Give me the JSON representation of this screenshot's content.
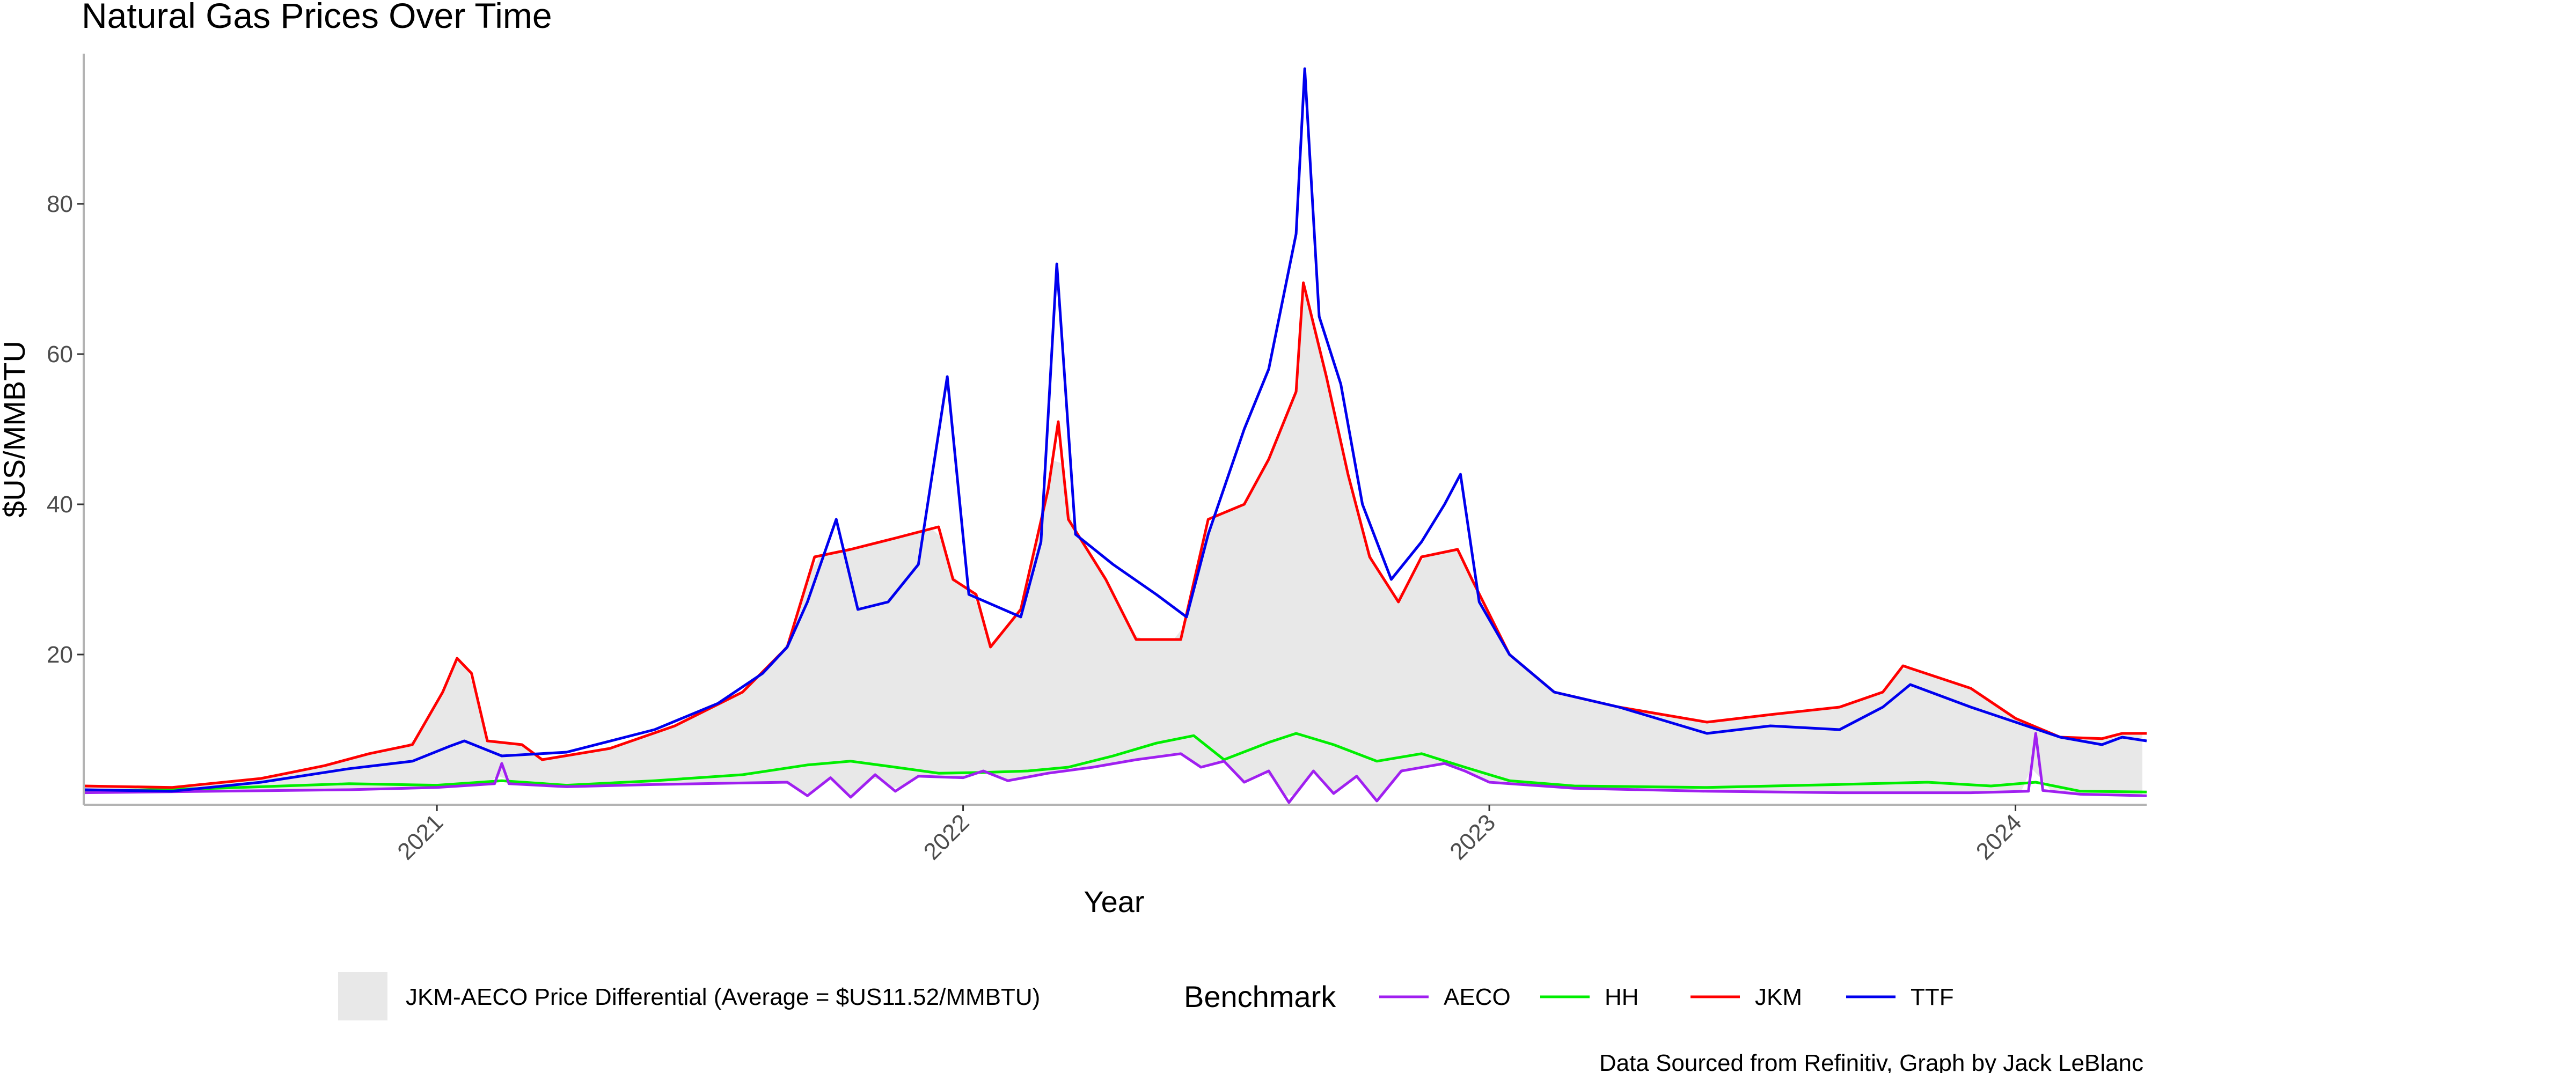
{
  "chart_data": {
    "type": "line",
    "title": "Natural Gas Prices Over Time",
    "xlabel": "Year",
    "ylabel": "$US/MMBTU",
    "caption": "Data Sourced from Refinitiv, Graph by Jack LeBlanc",
    "x_ticks": [
      "2021",
      "2022",
      "2023",
      "2024"
    ],
    "y_ticks": [
      "20",
      "40",
      "60",
      "80"
    ],
    "xlim": [
      "2020-05-01",
      "2024-04-01"
    ],
    "ylim": [
      0,
      100
    ],
    "grid": false,
    "legend_position": "bottom",
    "legend_title": "Benchmark",
    "ribbon": {
      "label": "JKM-AECO Price Differential (Average = $US11.52/MMBTU)",
      "lower": "AECO",
      "upper": "JKM",
      "color": "#e8e8e8"
    },
    "series": [
      {
        "name": "AECO",
        "color": "#a020f0",
        "points": [
          [
            "2020-05-01",
            1.6
          ],
          [
            "2020-08-01",
            1.8
          ],
          [
            "2020-11-01",
            2.0
          ],
          [
            "2021-01-01",
            2.3
          ],
          [
            "2021-02-10",
            2.8
          ],
          [
            "2021-02-15",
            5.5
          ],
          [
            "2021-02-20",
            2.8
          ],
          [
            "2021-04-01",
            2.4
          ],
          [
            "2021-06-01",
            2.7
          ],
          [
            "2021-08-01",
            2.9
          ],
          [
            "2021-09-01",
            3.0
          ],
          [
            "2021-09-15",
            1.2
          ],
          [
            "2021-10-01",
            3.6
          ],
          [
            "2021-10-15",
            1.0
          ],
          [
            "2021-11-01",
            4.0
          ],
          [
            "2021-11-15",
            1.8
          ],
          [
            "2021-12-01",
            3.8
          ],
          [
            "2022-01-01",
            3.6
          ],
          [
            "2022-01-15",
            4.5
          ],
          [
            "2022-02-01",
            3.2
          ],
          [
            "2022-03-01",
            4.2
          ],
          [
            "2022-04-01",
            5.0
          ],
          [
            "2022-05-01",
            6.0
          ],
          [
            "2022-06-01",
            6.8
          ],
          [
            "2022-06-15",
            5.0
          ],
          [
            "2022-07-01",
            5.8
          ],
          [
            "2022-07-15",
            3.0
          ],
          [
            "2022-08-01",
            4.5
          ],
          [
            "2022-08-15",
            0.3
          ],
          [
            "2022-09-01",
            4.5
          ],
          [
            "2022-09-15",
            1.5
          ],
          [
            "2022-10-01",
            3.8
          ],
          [
            "2022-10-15",
            0.5
          ],
          [
            "2022-11-01",
            4.5
          ],
          [
            "2022-12-01",
            5.5
          ],
          [
            "2022-12-15",
            4.5
          ],
          [
            "2023-01-01",
            3.0
          ],
          [
            "2023-03-01",
            2.2
          ],
          [
            "2023-06-01",
            1.8
          ],
          [
            "2023-09-01",
            1.6
          ],
          [
            "2023-12-01",
            1.6
          ],
          [
            "2024-01-10",
            1.8
          ],
          [
            "2024-01-15",
            9.5
          ],
          [
            "2024-01-20",
            1.9
          ],
          [
            "2024-02-15",
            1.4
          ],
          [
            "2024-04-01",
            1.2
          ]
        ]
      },
      {
        "name": "HH",
        "color": "#00ee00",
        "points": [
          [
            "2020-05-01",
            1.8
          ],
          [
            "2020-08-01",
            2.2
          ],
          [
            "2020-11-01",
            2.8
          ],
          [
            "2021-01-01",
            2.6
          ],
          [
            "2021-02-15",
            3.2
          ],
          [
            "2021-04-01",
            2.6
          ],
          [
            "2021-06-01",
            3.2
          ],
          [
            "2021-08-01",
            4.0
          ],
          [
            "2021-09-15",
            5.3
          ],
          [
            "2021-10-15",
            5.8
          ],
          [
            "2021-11-15",
            5.0
          ],
          [
            "2021-12-15",
            4.2
          ],
          [
            "2022-01-15",
            4.3
          ],
          [
            "2022-02-15",
            4.5
          ],
          [
            "2022-03-15",
            5.0
          ],
          [
            "2022-04-15",
            6.5
          ],
          [
            "2022-05-15",
            8.2
          ],
          [
            "2022-06-10",
            9.2
          ],
          [
            "2022-07-01",
            6.0
          ],
          [
            "2022-08-01",
            8.3
          ],
          [
            "2022-08-20",
            9.5
          ],
          [
            "2022-09-15",
            8.0
          ],
          [
            "2022-10-15",
            5.8
          ],
          [
            "2022-11-15",
            6.8
          ],
          [
            "2022-12-15",
            5.0
          ],
          [
            "2023-01-15",
            3.2
          ],
          [
            "2023-03-01",
            2.5
          ],
          [
            "2023-06-01",
            2.3
          ],
          [
            "2023-09-01",
            2.7
          ],
          [
            "2023-11-01",
            3.0
          ],
          [
            "2023-12-15",
            2.5
          ],
          [
            "2024-01-15",
            3.0
          ],
          [
            "2024-02-15",
            1.8
          ],
          [
            "2024-04-01",
            1.7
          ]
        ]
      },
      {
        "name": "JKM",
        "color": "#ff0000",
        "points": [
          [
            "2020-05-01",
            2.5
          ],
          [
            "2020-07-01",
            2.3
          ],
          [
            "2020-09-01",
            3.5
          ],
          [
            "2020-10-15",
            5.2
          ],
          [
            "2020-11-15",
            6.8
          ],
          [
            "2020-12-15",
            8.0
          ],
          [
            "2021-01-05",
            15.0
          ],
          [
            "2021-01-15",
            19.5
          ],
          [
            "2021-01-25",
            17.5
          ],
          [
            "2021-02-05",
            8.5
          ],
          [
            "2021-03-01",
            8.0
          ],
          [
            "2021-03-15",
            6.0
          ],
          [
            "2021-05-01",
            7.5
          ],
          [
            "2021-06-15",
            10.5
          ],
          [
            "2021-08-01",
            15.0
          ],
          [
            "2021-09-01",
            21.0
          ],
          [
            "2021-09-20",
            33.0
          ],
          [
            "2021-10-15",
            34.0
          ],
          [
            "2021-11-15",
            35.5
          ],
          [
            "2021-12-15",
            37.0
          ],
          [
            "2021-12-25",
            30.0
          ],
          [
            "2022-01-10",
            28.0
          ],
          [
            "2022-01-20",
            21.0
          ],
          [
            "2022-02-10",
            26.0
          ],
          [
            "2022-03-01",
            42.0
          ],
          [
            "2022-03-08",
            51.0
          ],
          [
            "2022-03-15",
            38.0
          ],
          [
            "2022-04-10",
            30.0
          ],
          [
            "2022-05-01",
            22.0
          ],
          [
            "2022-06-01",
            22.0
          ],
          [
            "2022-06-20",
            38.0
          ],
          [
            "2022-07-15",
            40.0
          ],
          [
            "2022-08-01",
            46.0
          ],
          [
            "2022-08-20",
            55.0
          ],
          [
            "2022-08-25",
            69.5
          ],
          [
            "2022-09-10",
            57.0
          ],
          [
            "2022-09-25",
            44.0
          ],
          [
            "2022-10-10",
            33.0
          ],
          [
            "2022-10-30",
            27.0
          ],
          [
            "2022-11-15",
            33.0
          ],
          [
            "2022-12-10",
            34.0
          ],
          [
            "2022-12-20",
            30.0
          ],
          [
            "2023-01-15",
            20.0
          ],
          [
            "2023-02-15",
            15.0
          ],
          [
            "2023-04-01",
            13.0
          ],
          [
            "2023-06-01",
            11.0
          ],
          [
            "2023-07-15",
            12.0
          ],
          [
            "2023-09-01",
            13.0
          ],
          [
            "2023-10-01",
            15.0
          ],
          [
            "2023-10-15",
            18.5
          ],
          [
            "2023-12-01",
            15.5
          ],
          [
            "2024-01-01",
            11.5
          ],
          [
            "2024-02-01",
            9.0
          ],
          [
            "2024-03-01",
            8.8
          ],
          [
            "2024-03-15",
            9.5
          ],
          [
            "2024-04-01",
            9.5
          ]
        ]
      },
      {
        "name": "TTF",
        "color": "#0000ee",
        "points": [
          [
            "2020-05-01",
            2.0
          ],
          [
            "2020-07-01",
            1.8
          ],
          [
            "2020-09-01",
            3.0
          ],
          [
            "2020-11-01",
            4.8
          ],
          [
            "2020-12-15",
            5.8
          ],
          [
            "2021-01-10",
            7.8
          ],
          [
            "2021-01-20",
            8.5
          ],
          [
            "2021-02-15",
            6.5
          ],
          [
            "2021-04-01",
            7.0
          ],
          [
            "2021-06-01",
            10.0
          ],
          [
            "2021-07-15",
            13.5
          ],
          [
            "2021-08-15",
            17.5
          ],
          [
            "2021-09-01",
            21.0
          ],
          [
            "2021-09-15",
            27.0
          ],
          [
            "2021-10-05",
            38.0
          ],
          [
            "2021-10-20",
            26.0
          ],
          [
            "2021-11-10",
            27.0
          ],
          [
            "2021-12-01",
            32.0
          ],
          [
            "2021-12-21",
            57.0
          ],
          [
            "2022-01-05",
            28.0
          ],
          [
            "2022-02-10",
            25.0
          ],
          [
            "2022-02-24",
            35.0
          ],
          [
            "2022-03-07",
            72.0
          ],
          [
            "2022-03-20",
            36.0
          ],
          [
            "2022-04-15",
            32.0
          ],
          [
            "2022-05-15",
            28.0
          ],
          [
            "2022-06-05",
            25.0
          ],
          [
            "2022-06-20",
            36.0
          ],
          [
            "2022-07-15",
            50.0
          ],
          [
            "2022-08-01",
            58.0
          ],
          [
            "2022-08-20",
            76.0
          ],
          [
            "2022-08-26",
            98.0
          ],
          [
            "2022-09-05",
            65.0
          ],
          [
            "2022-09-20",
            56.0
          ],
          [
            "2022-10-05",
            40.0
          ],
          [
            "2022-10-25",
            30.0
          ],
          [
            "2022-11-15",
            35.0
          ],
          [
            "2022-12-01",
            40.0
          ],
          [
            "2022-12-12",
            44.0
          ],
          [
            "2022-12-25",
            27.0
          ],
          [
            "2023-01-15",
            20.0
          ],
          [
            "2023-02-15",
            15.0
          ],
          [
            "2023-04-01",
            13.0
          ],
          [
            "2023-06-01",
            9.5
          ],
          [
            "2023-07-15",
            10.5
          ],
          [
            "2023-09-01",
            10.0
          ],
          [
            "2023-10-01",
            13.0
          ],
          [
            "2023-10-20",
            16.0
          ],
          [
            "2023-12-01",
            13.0
          ],
          [
            "2024-01-01",
            11.0
          ],
          [
            "2024-02-01",
            9.0
          ],
          [
            "2024-03-01",
            8.0
          ],
          [
            "2024-03-15",
            9.0
          ],
          [
            "2024-04-01",
            8.5
          ]
        ]
      }
    ]
  }
}
